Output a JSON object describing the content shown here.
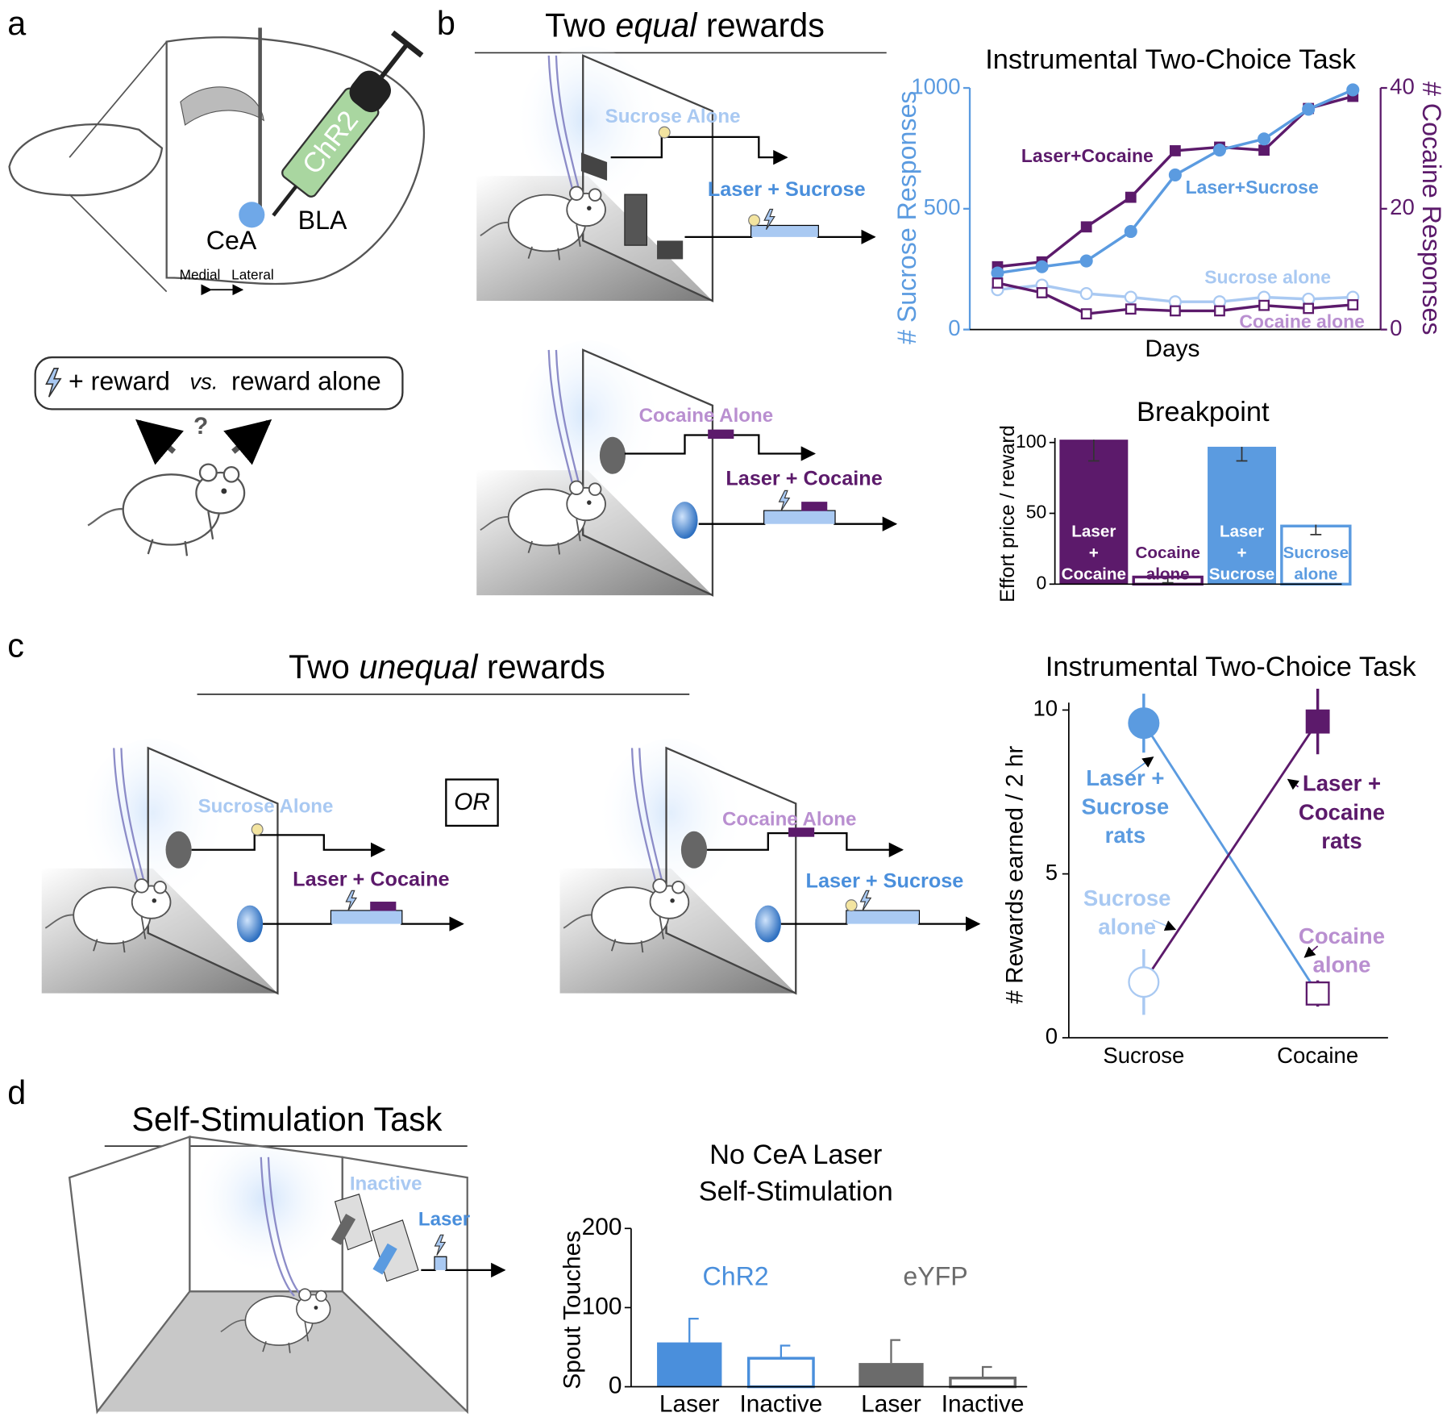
{
  "panels": {
    "a": {
      "label": "a",
      "cea": "CeA",
      "bla": "BLA",
      "virus": "ChR2",
      "medial": "Medial",
      "lateral": "Lateral",
      "plus_reward": "+ reward",
      "vs": "vs.",
      "reward_alone": "reward alone",
      "question": "?"
    },
    "b": {
      "label": "b",
      "title": [
        "Two ",
        "equal",
        " rewards"
      ],
      "top": {
        "alone": "Sucrose Alone",
        "laser": "Laser + Sucrose"
      },
      "bottom": {
        "alone": "Cocaine Alone",
        "laser": "Laser + Cocaine"
      }
    },
    "c": {
      "label": "c",
      "title": [
        "Two ",
        "unequal",
        " rewards"
      ],
      "left": {
        "alone": "Sucrose Alone",
        "laser": "Laser + Cocaine"
      },
      "or": "OR",
      "right": {
        "alone": "Cocaine Alone",
        "laser": "Laser + Sucrose"
      }
    },
    "d": {
      "label": "d",
      "title": "Self-Stimulation Task",
      "inactive": "Inactive",
      "laser": "Laser"
    }
  },
  "chart_data": [
    {
      "type": "line",
      "title": "Instrumental Two-Choice Task",
      "xlabel": "Days",
      "ylabel": "# Sucrose Responses",
      "y2label": "# Cocaine Responses",
      "y_color": "#5b9be0",
      "y2_color": "#5c1a6b",
      "categories": [
        null,
        null,
        null,
        null,
        null,
        null,
        null,
        null,
        null
      ],
      "ylim": [
        0,
        1000
      ],
      "yticks": [
        0,
        500,
        1000
      ],
      "y2lim": [
        0,
        40
      ],
      "y2ticks": [
        0,
        20,
        40
      ],
      "series": [
        {
          "name": "Laser+Cocaine",
          "color": "#5c1a6b",
          "axis": "y2",
          "marker": "square",
          "filled": true,
          "values": [
            10.4,
            11.2,
            17,
            21.9,
            29.6,
            30.2,
            29.7,
            36.6,
            38.6
          ]
        },
        {
          "name": "Laser+Sucrose",
          "color": "#5b9be0",
          "marker": "circle",
          "filled": true,
          "values": [
            234,
            260,
            284,
            406,
            640,
            743,
            789,
            912,
            992
          ]
        },
        {
          "name": "Sucrose alone",
          "color": "#a9c9f2",
          "marker": "circle",
          "filled": false,
          "values": [
            165,
            184,
            149,
            134,
            115,
            115,
            134,
            126,
            134
          ]
        },
        {
          "name": "Cocaine alone",
          "color": "#5c1a6b",
          "label_color": "#b98fd0",
          "axis": "y2",
          "marker": "square",
          "filled": false,
          "values": [
            7.7,
            6.1,
            2.6,
            3.4,
            3.1,
            3.1,
            4,
            3.5,
            4.1
          ]
        }
      ]
    },
    {
      "type": "bar",
      "title": "Breakpoint",
      "ylabel": "Effort price / reward",
      "categories": [
        [
          "Laser",
          "+",
          "Cocaine"
        ],
        [
          "Cocaine",
          "alone"
        ],
        [
          "Laser",
          "+",
          "Sucrose"
        ],
        [
          "Sucrose",
          "alone"
        ]
      ],
      "values": [
        102,
        6,
        97,
        42
      ],
      "errors": [
        15,
        5,
        10,
        7
      ],
      "colors": [
        "#5c1a6b",
        "#5c1a6b",
        "#5b9be0",
        "#5b9be0"
      ],
      "filled": [
        true,
        false,
        true,
        false
      ],
      "ylim": [
        0,
        100
      ],
      "yticks": [
        0,
        50,
        100
      ]
    },
    {
      "type": "line",
      "title": "Instrumental Two-Choice Task",
      "ylabel": "# Rewards earned / 2 hr",
      "categories": [
        "Sucrose",
        "Cocaine"
      ],
      "ylim": [
        0,
        10
      ],
      "yticks": [
        0,
        5,
        10
      ],
      "series": [
        {
          "name": [
            "Laser +",
            "Sucrose",
            "rats"
          ],
          "color": "#5b9be0",
          "values": [
            9.6,
            1.35
          ],
          "errors": [
            0.9,
            0.4
          ],
          "markers": [
            "circle",
            "square"
          ],
          "marker_colors": [
            "#5b9be0",
            "#5c1a6b"
          ],
          "filled": [
            true,
            false
          ],
          "alone_label": [
            "Cocaine",
            "alone"
          ],
          "alone_label_color": "#b98fd0"
        },
        {
          "name": [
            "Laser +",
            "Cocaine",
            "rats"
          ],
          "color": "#5c1a6b",
          "values": [
            1.7,
            9.65
          ],
          "errors": [
            1.0,
            1.0
          ],
          "markers": [
            "circle",
            "square"
          ],
          "marker_colors": [
            "#a9c9f2",
            "#5c1a6b"
          ],
          "filled": [
            false,
            true
          ],
          "alone_label": [
            "Sucrose",
            "alone"
          ],
          "alone_label_color": "#a9c9f2"
        }
      ]
    },
    {
      "type": "bar",
      "title": [
        "No CeA Laser",
        "Self-Stimulation"
      ],
      "ylabel": "Spout Touches",
      "categories": [
        "Laser",
        "Inactive"
      ],
      "filled": [
        true,
        false
      ],
      "ylim": [
        0,
        200
      ],
      "yticks": [
        0,
        100,
        200
      ],
      "series": [
        {
          "name": "ChR2",
          "color": "#4a8fdc",
          "values": [
            56,
            36
          ],
          "errors": [
            30,
            16
          ]
        },
        {
          "name": "eYFP",
          "color": "#6b6b6b",
          "values": [
            30,
            11
          ],
          "errors": [
            29,
            14
          ]
        }
      ]
    }
  ]
}
